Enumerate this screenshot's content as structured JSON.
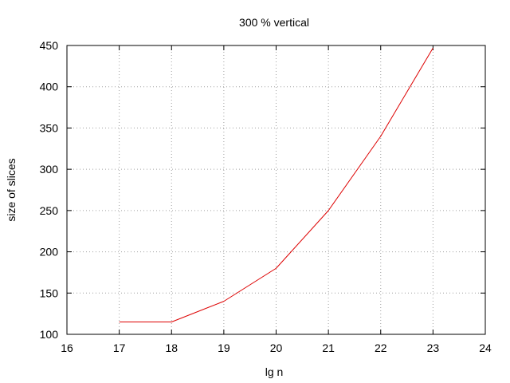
{
  "chart_data": {
    "type": "line",
    "title": "300 % vertical",
    "xlabel": "lg n",
    "ylabel": "size of slices",
    "xlim": [
      16,
      24
    ],
    "ylim": [
      100,
      450
    ],
    "xticks": [
      16,
      17,
      18,
      19,
      20,
      21,
      22,
      23,
      24
    ],
    "yticks": [
      100,
      150,
      200,
      250,
      300,
      350,
      400,
      450
    ],
    "grid": true,
    "legend": "none",
    "series": [
      {
        "color": "#dd0000",
        "x": [
          17,
          18,
          19,
          20,
          21,
          22,
          23
        ],
        "y": [
          115,
          115,
          140,
          180,
          250,
          340,
          447
        ]
      }
    ]
  }
}
